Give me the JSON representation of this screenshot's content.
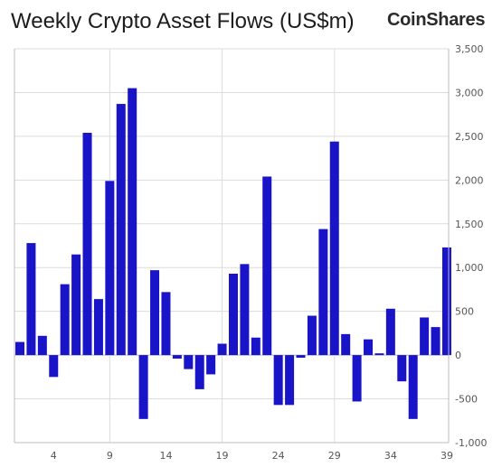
{
  "title": "Weekly Crypto Asset Flows (US$m)",
  "brand": "CoinShares",
  "colors": {
    "bar": "#1a14c9",
    "grid": "#dcdcdc",
    "axis": "#bdbdbd",
    "text": "#555555"
  },
  "chart_data": {
    "type": "bar",
    "title": "Weekly Crypto Asset Flows (US$m)",
    "xlabel": "",
    "ylabel": "",
    "ylim": [
      -1000,
      3500
    ],
    "y_ticks": [
      -1000,
      -500,
      0,
      500,
      1000,
      1500,
      2000,
      2500,
      3000,
      3500
    ],
    "y_tick_labels": [
      "-1,000",
      "-500",
      "0",
      "500",
      "1,000",
      "1,500",
      "2,000",
      "2,500",
      "3,000",
      "3,500"
    ],
    "x_ticks": [
      4,
      9,
      14,
      19,
      24,
      29,
      34,
      39
    ],
    "x_vertical_grid_at": [
      9,
      19,
      29
    ],
    "grid": true,
    "legend": "none",
    "categories": [
      1,
      2,
      3,
      4,
      5,
      6,
      7,
      8,
      9,
      10,
      11,
      12,
      13,
      14,
      15,
      16,
      17,
      18,
      19,
      20,
      21,
      22,
      23,
      24,
      25,
      26,
      27,
      28,
      29,
      30,
      31,
      32,
      33,
      34,
      35,
      36,
      37,
      38,
      39
    ],
    "values": [
      150,
      1280,
      220,
      -250,
      810,
      1150,
      2540,
      640,
      1990,
      2870,
      3050,
      -730,
      970,
      720,
      -40,
      -160,
      -390,
      -220,
      130,
      930,
      1040,
      200,
      2040,
      -570,
      -570,
      -30,
      450,
      1440,
      2440,
      240,
      -530,
      180,
      20,
      530,
      -300,
      -730,
      430,
      320,
      1230
    ]
  }
}
